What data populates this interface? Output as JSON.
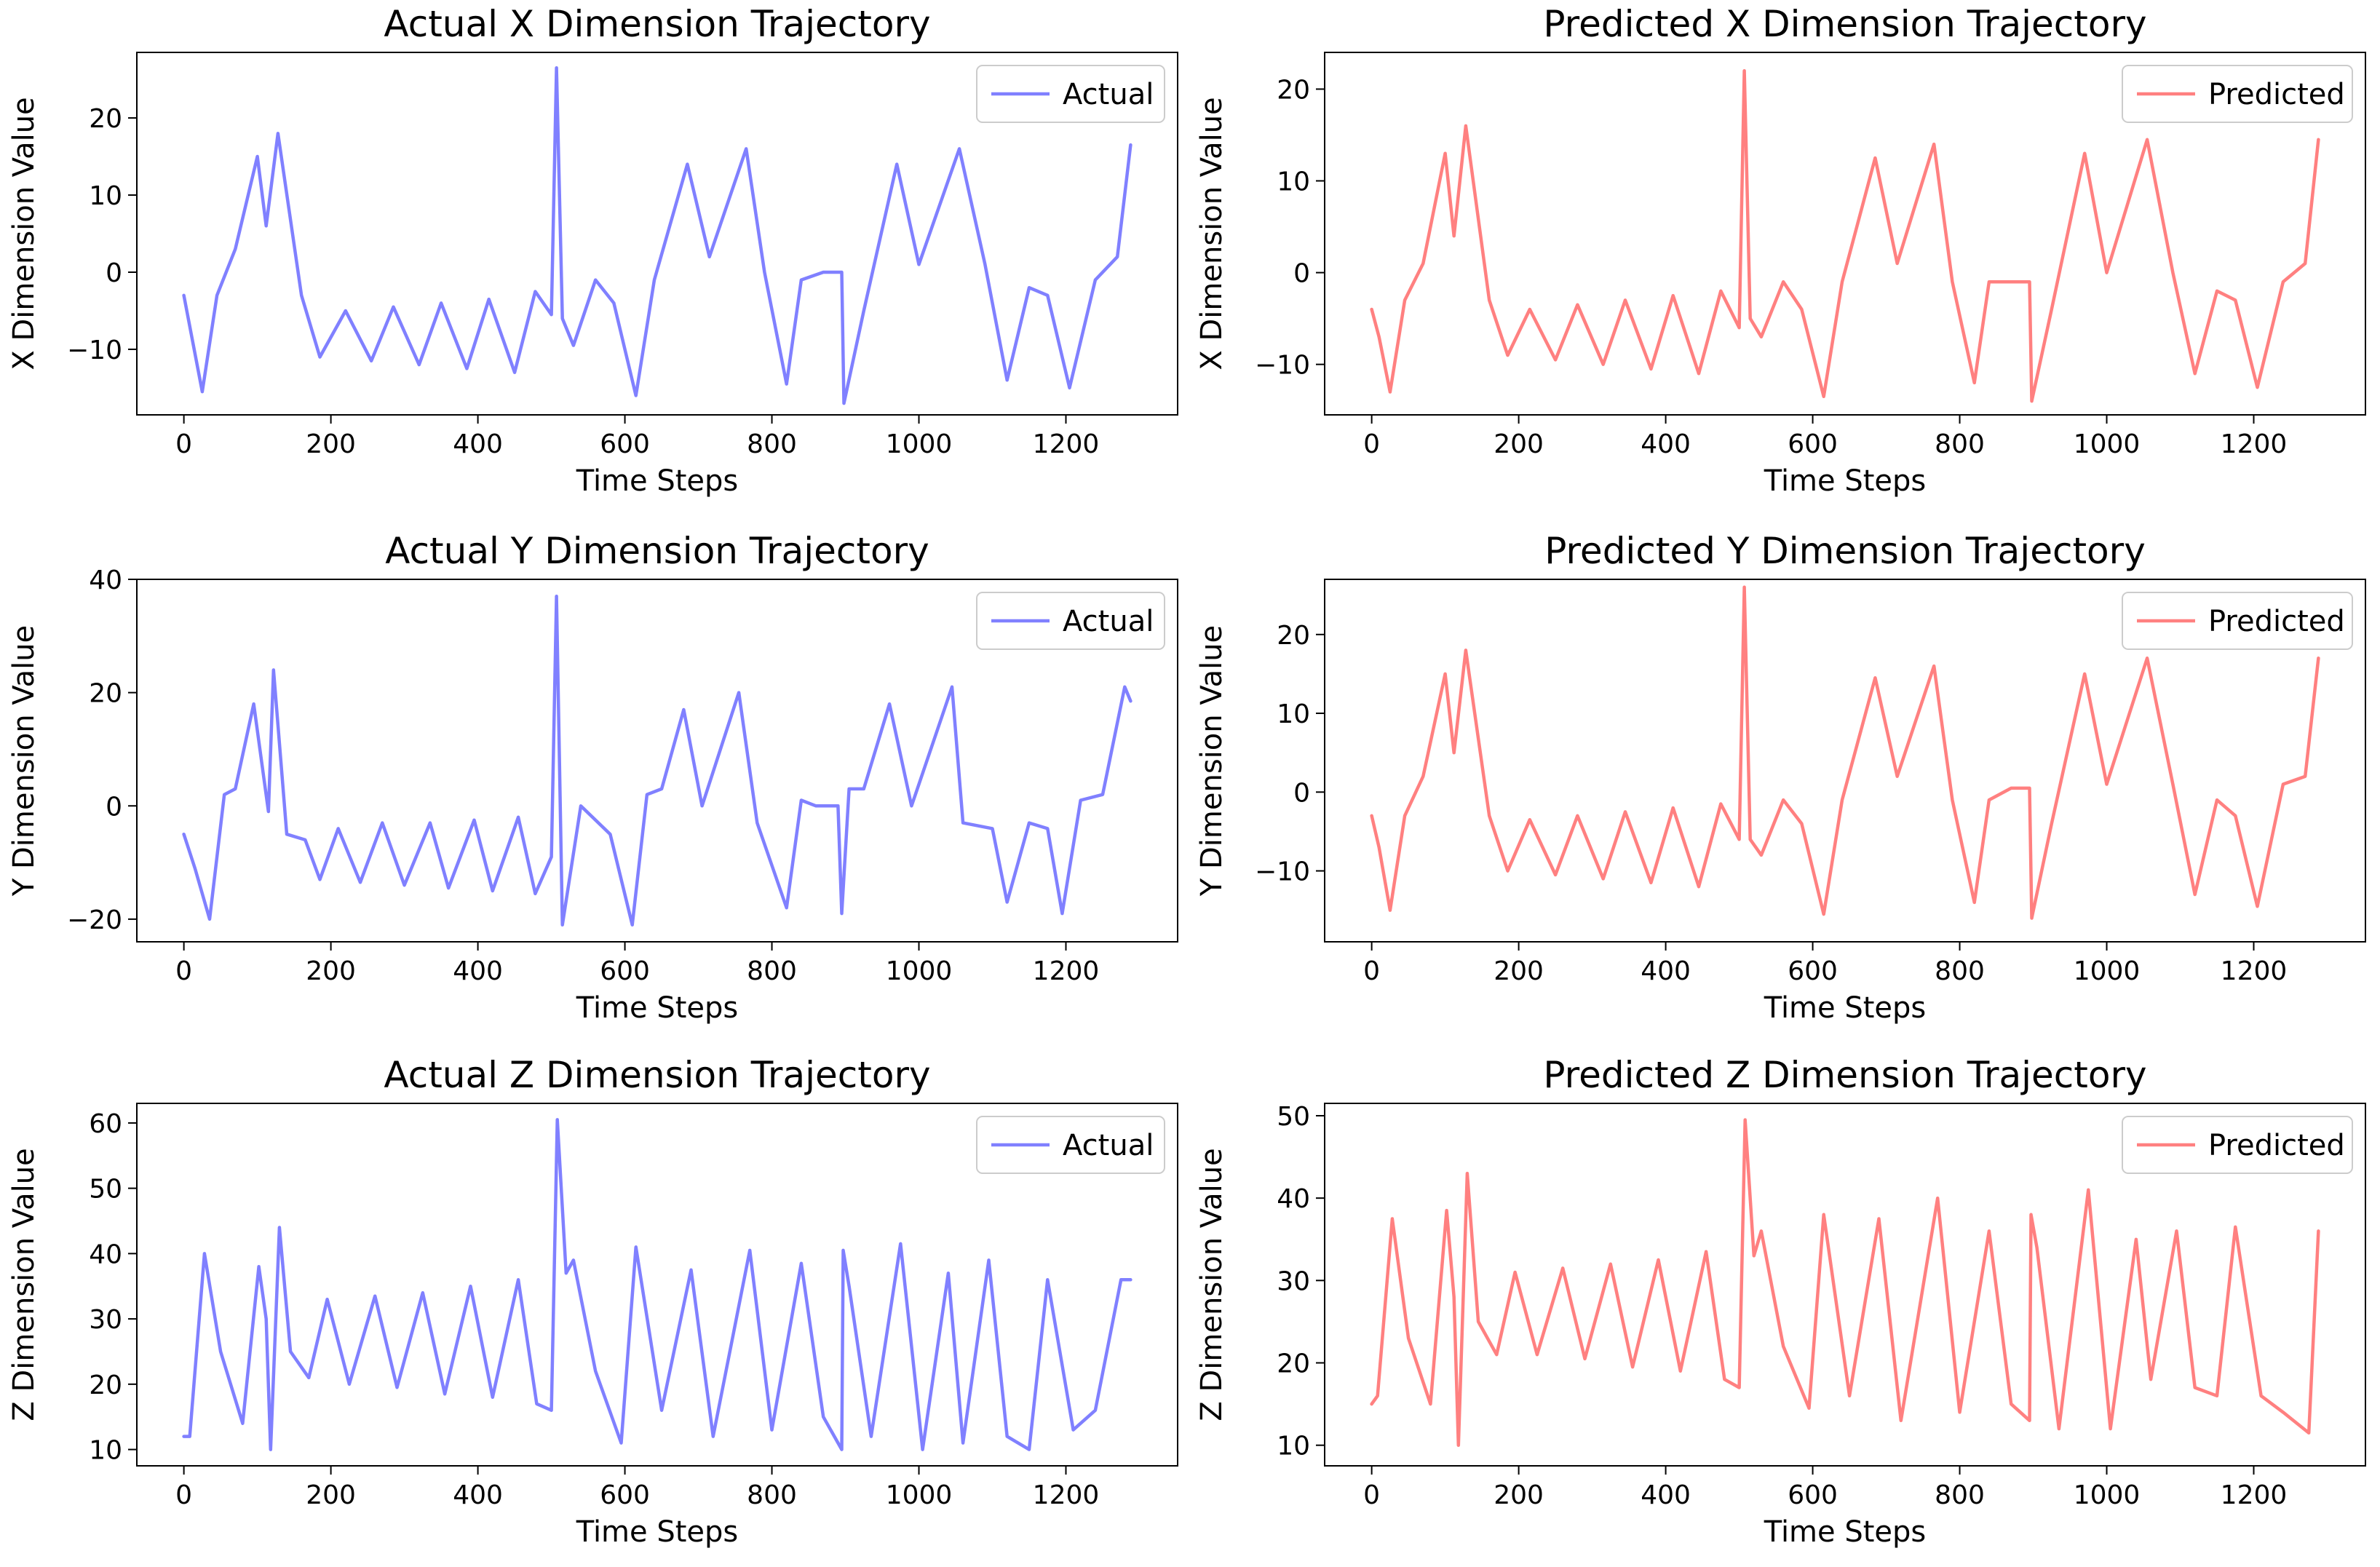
{
  "chart_data": [
    {
      "id": "actual-x",
      "type": "line",
      "title": "Actual X Dimension Trajectory",
      "xlabel": "Time Steps",
      "ylabel": "X Dimension Value",
      "color": "#8080ff",
      "xlim": [
        -64,
        1352
      ],
      "ylim": [
        -18.5,
        28.5
      ],
      "xticks": [
        0,
        200,
        400,
        600,
        800,
        1000,
        1200
      ],
      "yticks": [
        -10,
        0,
        10,
        20
      ],
      "legend": "Actual",
      "legend_position": "top-right",
      "series": [
        {
          "name": "Actual",
          "x": [
            0,
            10,
            25,
            45,
            70,
            100,
            112,
            128,
            160,
            185,
            220,
            255,
            285,
            320,
            350,
            385,
            415,
            450,
            478,
            500,
            507,
            515,
            530,
            560,
            585,
            615,
            640,
            685,
            715,
            765,
            790,
            820,
            840,
            870,
            895,
            898,
            925,
            970,
            1000,
            1055,
            1090,
            1120,
            1150,
            1175,
            1205,
            1240,
            1270,
            1288
          ],
          "y": [
            -3,
            -8,
            -15.5,
            -3,
            3,
            15,
            6,
            18,
            -3,
            -11,
            -5,
            -11.5,
            -4.5,
            -12,
            -4,
            -12.5,
            -3.5,
            -13,
            -2.5,
            -5.5,
            26.5,
            -6,
            -9.5,
            -1,
            -4,
            -16,
            -1,
            14,
            2,
            16,
            0,
            -14.5,
            -1,
            0,
            0,
            -17,
            -5,
            14,
            1,
            16,
            1,
            -14,
            -2,
            -3,
            -15,
            -1,
            2,
            16.5
          ]
        }
      ]
    },
    {
      "id": "predicted-x",
      "type": "line",
      "title": "Predicted X Dimension Trajectory",
      "xlabel": "Time Steps",
      "ylabel": "X Dimension Value",
      "color": "#ff8080",
      "xlim": [
        -64,
        1352
      ],
      "ylim": [
        -15.5,
        24
      ],
      "xticks": [
        0,
        200,
        400,
        600,
        800,
        1000,
        1200
      ],
      "yticks": [
        -10,
        0,
        10,
        20
      ],
      "legend": "Predicted",
      "legend_position": "top-right",
      "series": [
        {
          "name": "Predicted",
          "x": [
            0,
            10,
            25,
            45,
            70,
            100,
            112,
            128,
            160,
            185,
            215,
            250,
            280,
            315,
            345,
            380,
            410,
            445,
            475,
            500,
            507,
            515,
            530,
            560,
            585,
            615,
            640,
            685,
            715,
            765,
            790,
            820,
            840,
            870,
            895,
            898,
            925,
            970,
            1000,
            1055,
            1090,
            1120,
            1150,
            1175,
            1205,
            1240,
            1270,
            1288
          ],
          "y": [
            -4,
            -7,
            -13,
            -3,
            1,
            13,
            4,
            16,
            -3,
            -9,
            -4,
            -9.5,
            -3.5,
            -10,
            -3,
            -10.5,
            -2.5,
            -11,
            -2,
            -6,
            22,
            -5,
            -7,
            -1,
            -4,
            -13.5,
            -1,
            12.5,
            1,
            14,
            -1,
            -12,
            -1,
            -1,
            -1,
            -14,
            -4,
            13,
            0,
            14.5,
            0,
            -11,
            -2,
            -3,
            -12.5,
            -1,
            1,
            14.5
          ]
        }
      ]
    },
    {
      "id": "actual-y",
      "type": "line",
      "title": "Actual Y Dimension Trajectory",
      "xlabel": "Time Steps",
      "ylabel": "Y Dimension Value",
      "color": "#8080ff",
      "xlim": [
        -64,
        1352
      ],
      "ylim": [
        -24,
        40
      ],
      "xticks": [
        0,
        200,
        400,
        600,
        800,
        1000,
        1200
      ],
      "yticks": [
        -20,
        0,
        20,
        40
      ],
      "legend": "Actual",
      "legend_position": "top-right",
      "series": [
        {
          "name": "Actual",
          "x": [
            0,
            15,
            35,
            55,
            70,
            95,
            115,
            122,
            140,
            165,
            185,
            210,
            240,
            270,
            300,
            335,
            360,
            395,
            420,
            455,
            478,
            500,
            507,
            515,
            540,
            580,
            610,
            630,
            650,
            680,
            705,
            755,
            780,
            820,
            840,
            860,
            890,
            895,
            905,
            925,
            960,
            990,
            1045,
            1060,
            1100,
            1120,
            1150,
            1175,
            1195,
            1220,
            1250,
            1280,
            1288
          ],
          "y": [
            -5,
            -11,
            -20,
            2,
            3,
            18,
            -1,
            24,
            -5,
            -6,
            -13,
            -4,
            -13.5,
            -3,
            -14,
            -3,
            -14.5,
            -2.5,
            -15,
            -2,
            -15.5,
            -9,
            37,
            -21,
            0,
            -5,
            -21,
            2,
            3,
            17,
            0,
            20,
            -3,
            -18,
            1,
            0,
            0,
            -19,
            3,
            3,
            18,
            0,
            21,
            -3,
            -4,
            -17,
            -3,
            -4,
            -19,
            1,
            2,
            21,
            18.5
          ]
        }
      ]
    },
    {
      "id": "predicted-y",
      "type": "line",
      "title": "Predicted Y Dimension Trajectory",
      "xlabel": "Time Steps",
      "ylabel": "Y Dimension Value",
      "color": "#ff8080",
      "xlim": [
        -64,
        1352
      ],
      "ylim": [
        -19,
        27
      ],
      "xticks": [
        0,
        200,
        400,
        600,
        800,
        1000,
        1200
      ],
      "yticks": [
        -10,
        0,
        10,
        20
      ],
      "legend": "Predicted",
      "legend_position": "top-right",
      "series": [
        {
          "name": "Predicted",
          "x": [
            0,
            10,
            25,
            45,
            70,
            100,
            112,
            128,
            160,
            185,
            215,
            250,
            280,
            315,
            345,
            380,
            410,
            445,
            475,
            500,
            507,
            515,
            530,
            560,
            585,
            615,
            640,
            685,
            715,
            765,
            790,
            820,
            840,
            870,
            895,
            898,
            925,
            970,
            1000,
            1055,
            1090,
            1120,
            1150,
            1175,
            1205,
            1240,
            1270,
            1288
          ],
          "y": [
            -3,
            -7,
            -15,
            -3,
            2,
            15,
            5,
            18,
            -3,
            -10,
            -3.5,
            -10.5,
            -3,
            -11,
            -2.5,
            -11.5,
            -2,
            -12,
            -1.5,
            -6,
            26,
            -6,
            -8,
            -1,
            -4,
            -15.5,
            -1,
            14.5,
            2,
            16,
            -1,
            -14,
            -1,
            0.5,
            0.5,
            -16,
            -4,
            15,
            1,
            17,
            1,
            -13,
            -1,
            -3,
            -14.5,
            1,
            2,
            17
          ]
        }
      ]
    },
    {
      "id": "actual-z",
      "type": "line",
      "title": "Actual Z Dimension Trajectory",
      "xlabel": "Time Steps",
      "ylabel": "Z Dimension Value",
      "color": "#8080ff",
      "xlim": [
        -64,
        1352
      ],
      "ylim": [
        7.5,
        63
      ],
      "xticks": [
        0,
        200,
        400,
        600,
        800,
        1000,
        1200
      ],
      "yticks": [
        10,
        20,
        30,
        40,
        50,
        60
      ],
      "legend": "Actual",
      "legend_position": "top-right",
      "series": [
        {
          "name": "Actual",
          "x": [
            0,
            8,
            28,
            50,
            80,
            102,
            112,
            118,
            130,
            145,
            170,
            195,
            225,
            260,
            290,
            325,
            355,
            390,
            420,
            455,
            480,
            500,
            508,
            520,
            530,
            560,
            595,
            615,
            650,
            690,
            720,
            770,
            800,
            840,
            870,
            895,
            897,
            905,
            935,
            975,
            1005,
            1040,
            1060,
            1095,
            1120,
            1150,
            1175,
            1210,
            1240,
            1275,
            1288
          ],
          "y": [
            12,
            12,
            40,
            25,
            14,
            38,
            30,
            10,
            44,
            25,
            21,
            33,
            20,
            33.5,
            19.5,
            34,
            18.5,
            35,
            18,
            36,
            17,
            16,
            60.5,
            37,
            39,
            22,
            11,
            41,
            16,
            37.5,
            12,
            40.5,
            13,
            38.5,
            15,
            10,
            40.5,
            35,
            12,
            41.5,
            10,
            37,
            11,
            39,
            12,
            10,
            36,
            13,
            16,
            36,
            36
          ]
        }
      ]
    },
    {
      "id": "predicted-z",
      "type": "line",
      "title": "Predicted Z Dimension Trajectory",
      "xlabel": "Time Steps",
      "ylabel": "Z Dimension Value",
      "color": "#ff8080",
      "xlim": [
        -64,
        1352
      ],
      "ylim": [
        7.5,
        51.5
      ],
      "xticks": [
        0,
        200,
        400,
        600,
        800,
        1000,
        1200
      ],
      "yticks": [
        10,
        20,
        30,
        40,
        50
      ],
      "legend": "Predicted",
      "legend_position": "top-right",
      "series": [
        {
          "name": "Predicted",
          "x": [
            0,
            8,
            28,
            50,
            80,
            102,
            112,
            118,
            130,
            145,
            170,
            195,
            225,
            260,
            290,
            325,
            355,
            390,
            420,
            455,
            480,
            500,
            508,
            520,
            530,
            560,
            595,
            615,
            650,
            690,
            720,
            770,
            800,
            840,
            870,
            895,
            897,
            905,
            935,
            975,
            1005,
            1040,
            1060,
            1095,
            1120,
            1150,
            1175,
            1210,
            1240,
            1275,
            1288
          ],
          "y": [
            15,
            16,
            37.5,
            23,
            15,
            38.5,
            28,
            10,
            43,
            25,
            21,
            31,
            21,
            31.5,
            20.5,
            32,
            19.5,
            32.5,
            19,
            33.5,
            18,
            17,
            49.5,
            33,
            36,
            22,
            14.5,
            38,
            16,
            37.5,
            13,
            40,
            14,
            36,
            15,
            13,
            38,
            34,
            12,
            41,
            12,
            35,
            18,
            36,
            17,
            16,
            36.5,
            16,
            14,
            11.5,
            36
          ]
        }
      ]
    }
  ]
}
